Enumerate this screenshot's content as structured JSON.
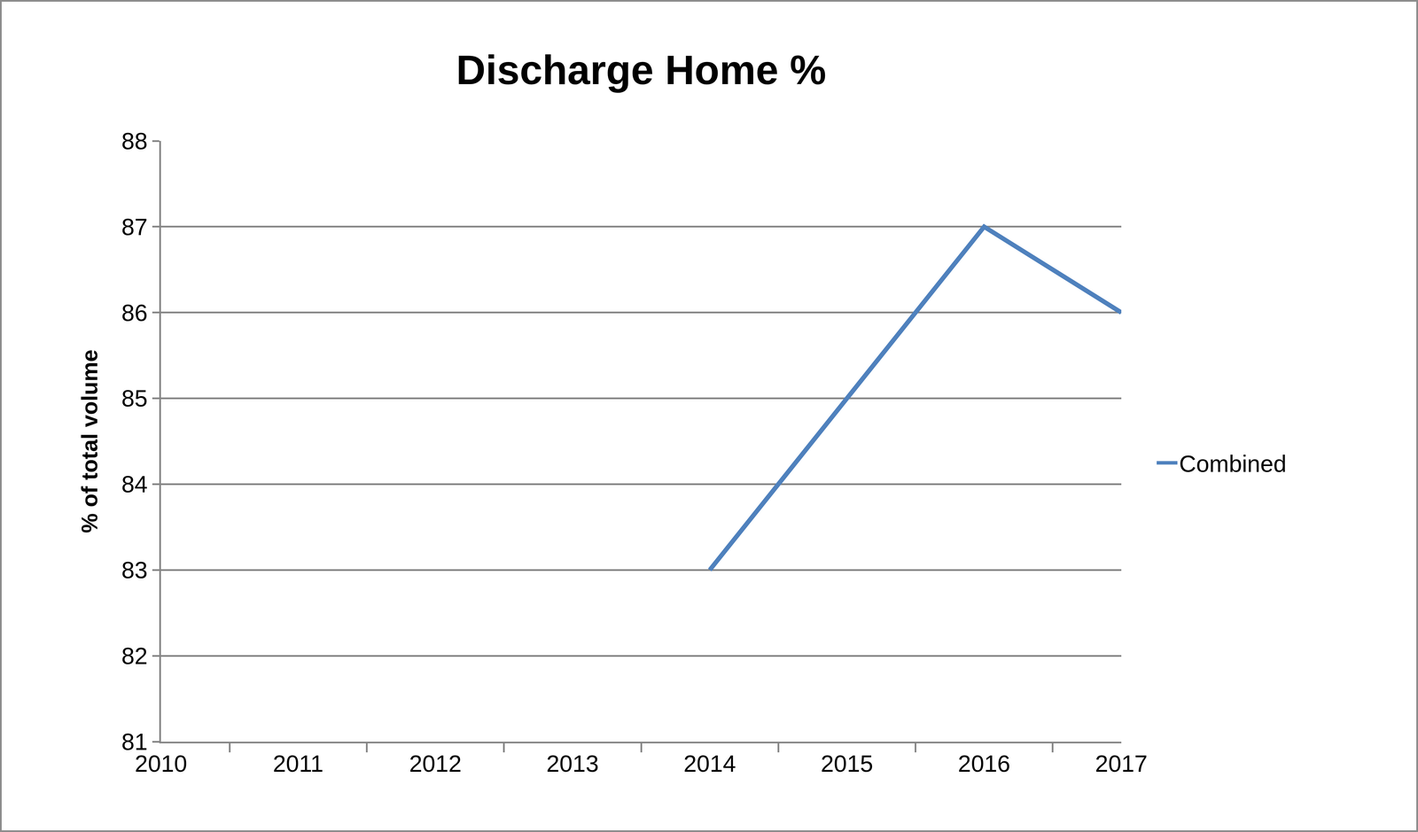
{
  "chart_data": {
    "type": "line",
    "title": "Discharge Home %",
    "y_label": "% of total volume",
    "categories": [
      "2010",
      "2011",
      "2012",
      "2013",
      "2014",
      "2015",
      "2016",
      "2017"
    ],
    "series": [
      {
        "name": "Combined",
        "color": "#4f81bd",
        "values": [
          null,
          null,
          null,
          null,
          83,
          85,
          87,
          86
        ]
      }
    ],
    "ylim": [
      81,
      88
    ],
    "yticks": [
      81,
      82,
      83,
      84,
      85,
      86,
      87,
      88
    ],
    "grid": true,
    "legend": "right"
  }
}
